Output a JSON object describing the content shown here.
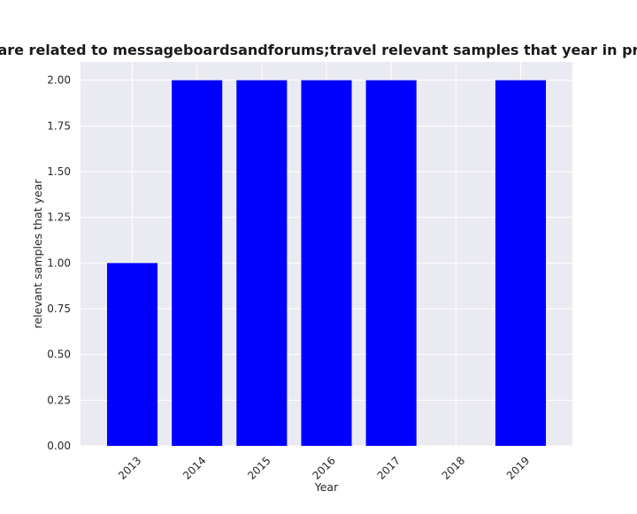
{
  "chart_data": {
    "type": "bar",
    "title": "Categories are related to messageboardsandforums;travel relevant samples that year in privacy policies",
    "xlabel": "Year",
    "ylabel": "relevant samples that year",
    "categories": [
      "2013",
      "2014",
      "2015",
      "2016",
      "2017",
      "2018",
      "2019"
    ],
    "values": [
      1,
      2,
      2,
      2,
      2,
      0,
      2
    ],
    "ylim": [
      0,
      2.1
    ],
    "yticks": [
      "0.00",
      "0.25",
      "0.50",
      "0.75",
      "1.00",
      "1.25",
      "1.50",
      "1.75",
      "2.00"
    ],
    "grid": true,
    "bar_color": "#0000ff",
    "plot_background": "#eaeaf2",
    "grid_color": "#ffffff"
  }
}
